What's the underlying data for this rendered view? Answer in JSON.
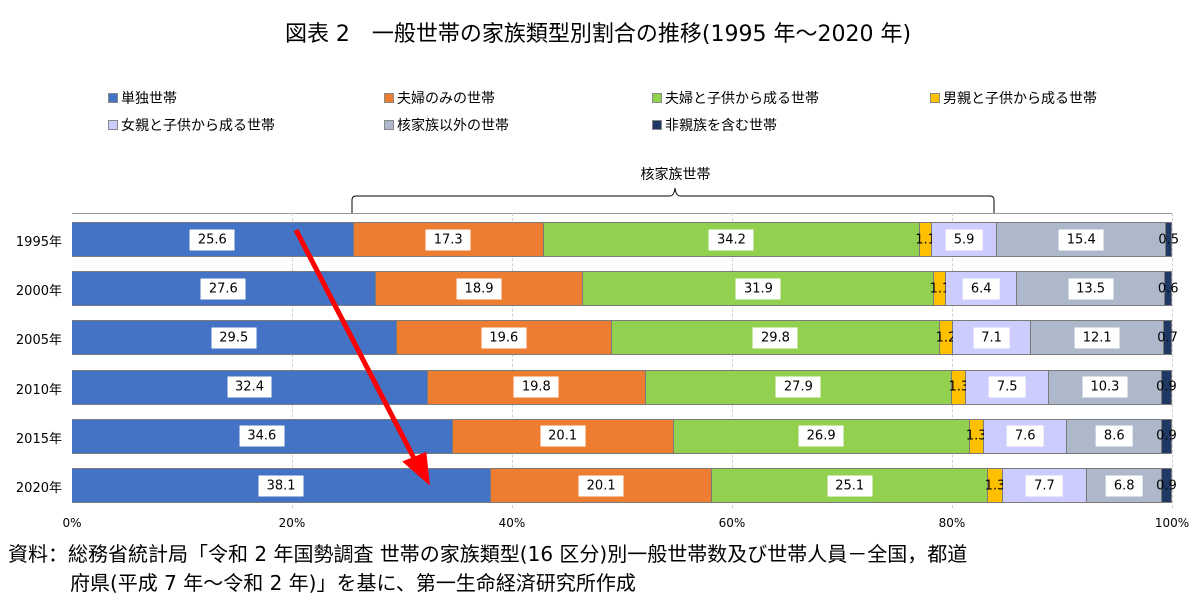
{
  "title": "図表 2　一般世帯の家族類型別割合の推移(1995 年～2020 年)",
  "legend": [
    {
      "label": "単独世帯",
      "color": "#4472C4"
    },
    {
      "label": "夫婦のみの世帯",
      "color": "#ED7D31"
    },
    {
      "label": "夫婦と子供から成る世帯",
      "color": "#92D050"
    },
    {
      "label": "男親と子供から成る世帯",
      "color": "#FFC000"
    },
    {
      "label": "女親と子供から成る世帯",
      "color": "#CCCCFF"
    },
    {
      "label": "核家族以外の世帯",
      "color": "#ADB9CA"
    },
    {
      "label": "非親族を含む世帯",
      "color": "#203864"
    }
  ],
  "bracket_label": "核家族世帯",
  "x_ticks": [
    "0%",
    "20%",
    "40%",
    "60%",
    "80%",
    "100%"
  ],
  "source_line1": "資料：総務省統計局「令和 2 年国勢調査 世帯の家族類型(16 区分)別一般世帯数及び世帯人員－全国，都道",
  "source_line2": "府県(平成 7 年～令和 2 年)」を基に、第一生命経済研究所作成",
  "chart_data": {
    "type": "bar",
    "orientation": "horizontal",
    "stacked": "percent",
    "title": "図表 2　一般世帯の家族類型別割合の推移(1995 年～2020 年)",
    "categories": [
      "1995年",
      "2000年",
      "2005年",
      "2010年",
      "2015年",
      "2020年"
    ],
    "series": [
      {
        "name": "単独世帯",
        "color": "#4472C4",
        "values": [
          25.6,
          27.6,
          29.5,
          32.4,
          34.6,
          38.1
        ]
      },
      {
        "name": "夫婦のみの世帯",
        "color": "#ED7D31",
        "values": [
          17.3,
          18.9,
          19.6,
          19.8,
          20.1,
          20.1
        ]
      },
      {
        "name": "夫婦と子供から成る世帯",
        "color": "#92D050",
        "values": [
          34.2,
          31.9,
          29.8,
          27.9,
          26.9,
          25.1
        ]
      },
      {
        "name": "男親と子供から成る世帯",
        "color": "#FFC000",
        "values": [
          1.1,
          1.1,
          1.2,
          1.3,
          1.3,
          1.3
        ]
      },
      {
        "name": "女親と子供から成る世帯",
        "color": "#CCCCFF",
        "values": [
          5.9,
          6.4,
          7.1,
          7.5,
          7.6,
          7.7
        ]
      },
      {
        "name": "核家族以外の世帯",
        "color": "#ADB9CA",
        "values": [
          15.4,
          13.5,
          12.1,
          10.3,
          8.6,
          6.8
        ]
      },
      {
        "name": "非親族を含む世帯",
        "color": "#203864",
        "values": [
          0.5,
          0.6,
          0.7,
          0.9,
          0.9,
          0.9
        ]
      }
    ],
    "xlabel": "",
    "ylabel": "",
    "xlim": [
      0,
      100
    ],
    "x_ticks": [
      "0%",
      "20%",
      "40%",
      "60%",
      "80%",
      "100%"
    ],
    "grid": true,
    "legend_position": "top",
    "annotations": [
      {
        "type": "bracket",
        "label": "核家族世帯",
        "spans": [
          "夫婦のみの世帯",
          "夫婦と子供から成る世帯",
          "男親と子供から成る世帯",
          "女親と子供から成る世帯"
        ],
        "row": "1995年"
      },
      {
        "type": "arrow",
        "color": "#FF0000",
        "from": "1995年 単独世帯",
        "to": "2020年 単独世帯",
        "meaning": "単独世帯の割合が増加"
      }
    ]
  }
}
